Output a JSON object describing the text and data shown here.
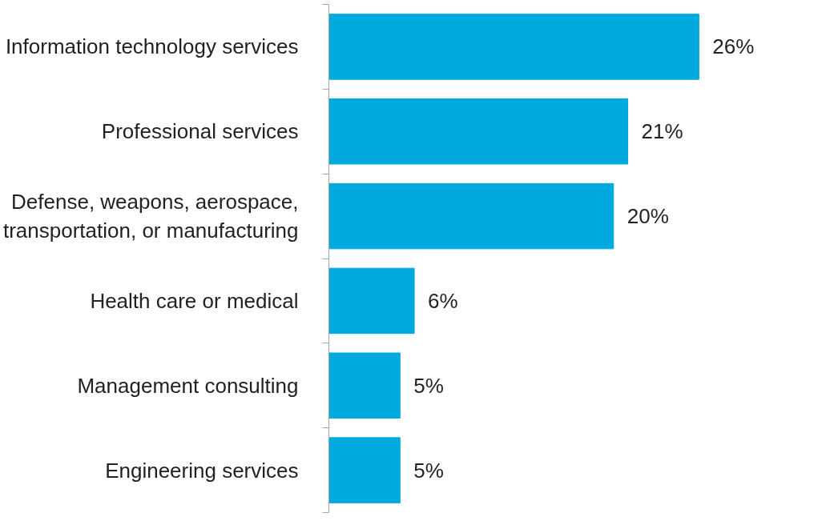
{
  "chart_data": {
    "type": "bar",
    "orientation": "horizontal",
    "categories": [
      "Information technology services",
      "Professional services",
      "Defense, weapons, aerospace,\ntransportation, or manufacturing",
      "Health care or medical",
      "Management consulting",
      "Engineering services"
    ],
    "values": [
      26,
      21,
      20,
      6,
      5,
      5
    ],
    "value_labels": [
      "26%",
      "21%",
      "20%",
      "6%",
      "5%",
      "5%"
    ],
    "color": "#00a9de"
  }
}
